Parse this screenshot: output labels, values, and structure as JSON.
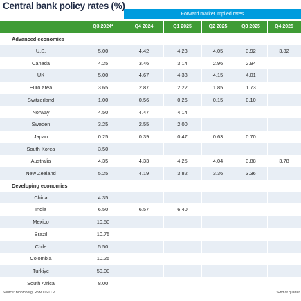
{
  "title": "Central bank policy rates (%)",
  "forward_header": "Forward market implied rates",
  "columns": [
    "Q3 2024*",
    "Q4 2024",
    "Q1 2025",
    "Q2 2025",
    "Q3 2025",
    "Q4 2025"
  ],
  "advanced": {
    "label": "Advanced economies",
    "rows": [
      {
        "name": "U.S.",
        "values": [
          "5.00",
          "4.42",
          "4.23",
          "4.05",
          "3.92",
          "3.82"
        ]
      },
      {
        "name": "Canada",
        "values": [
          "4.25",
          "3.46",
          "3.14",
          "2.96",
          "2.94",
          ""
        ]
      },
      {
        "name": "UK",
        "values": [
          "5.00",
          "4.67",
          "4.38",
          "4.15",
          "4.01",
          ""
        ]
      },
      {
        "name": "Euro area",
        "values": [
          "3.65",
          "2.87",
          "2.22",
          "1.85",
          "1.73",
          ""
        ]
      },
      {
        "name": "Switzerland",
        "values": [
          "1.00",
          "0.56",
          "0.26",
          "0.15",
          "0.10",
          ""
        ]
      },
      {
        "name": "Norway",
        "values": [
          "4.50",
          "4.47",
          "4.14",
          "",
          "",
          ""
        ]
      },
      {
        "name": "Sweden",
        "values": [
          "3.25",
          "2.55",
          "2.00",
          "",
          "",
          ""
        ]
      },
      {
        "name": "Japan",
        "values": [
          "0.25",
          "0.39",
          "0.47",
          "0.63",
          "0.70",
          ""
        ]
      },
      {
        "name": "South Korea",
        "values": [
          "3.50",
          "",
          "",
          "",
          "",
          ""
        ]
      },
      {
        "name": "Australia",
        "values": [
          "4.35",
          "4.33",
          "4.25",
          "4.04",
          "3.88",
          "3.78"
        ]
      },
      {
        "name": "New Zealand",
        "values": [
          "5.25",
          "4.19",
          "3.82",
          "3.36",
          "3.36",
          ""
        ]
      }
    ]
  },
  "developing": {
    "label": "Developing economies",
    "rows": [
      {
        "name": "China",
        "values": [
          "4.35",
          "",
          "",
          "",
          "",
          ""
        ]
      },
      {
        "name": "India",
        "values": [
          "6.50",
          "6.57",
          "6.40",
          "",
          "",
          ""
        ]
      },
      {
        "name": "Mexico",
        "values": [
          "10.50",
          "",
          "",
          "",
          "",
          ""
        ]
      },
      {
        "name": "Brazil",
        "values": [
          "10.75",
          "",
          "",
          "",
          "",
          ""
        ]
      },
      {
        "name": "Chile",
        "values": [
          "5.50",
          "",
          "",
          "",
          "",
          ""
        ]
      },
      {
        "name": "Colombia",
        "values": [
          "10.25",
          "",
          "",
          "",
          "",
          ""
        ]
      },
      {
        "name": "Turkiye",
        "values": [
          "50.00",
          "",
          "",
          "",
          "",
          ""
        ]
      },
      {
        "name": "South Africa",
        "values": [
          "8.00",
          "",
          "",
          "",
          "",
          ""
        ]
      }
    ]
  },
  "source": "Source: Bloomberg, RSM US LLP",
  "footnote": "*End of quarter",
  "colors": {
    "header_green": "#3f9c35",
    "header_blue": "#009cde",
    "row_alt": "#e8eef5",
    "title": "#1f2a44"
  }
}
